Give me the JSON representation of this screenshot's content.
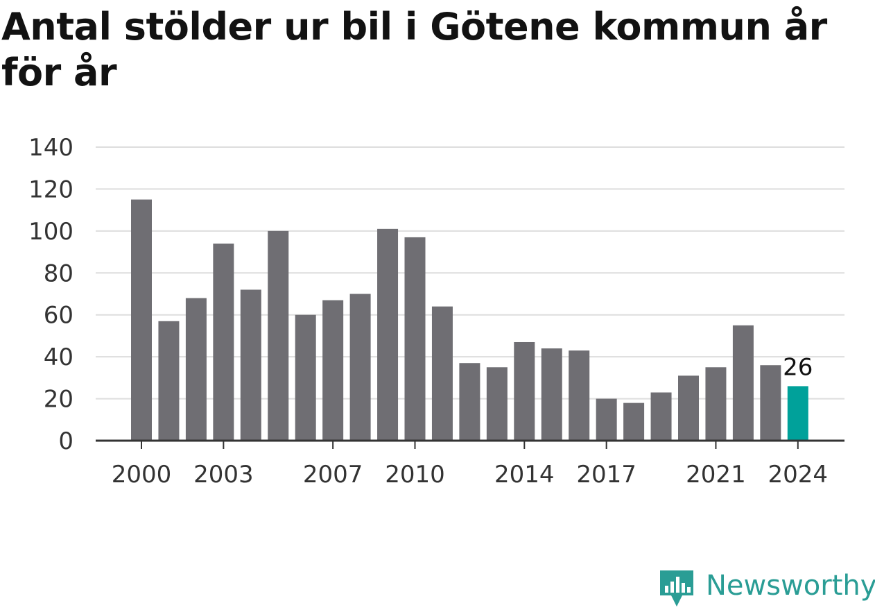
{
  "title": "Antal stölder ur bil i Götene kommun år för år",
  "brand": {
    "name": "Newsworthy",
    "color": "#2a9d95"
  },
  "colors": {
    "bar": "#6f6e73",
    "highlight": "#00a19a",
    "grid": "#dddddd",
    "axis": "#333333"
  },
  "chart_data": {
    "type": "bar",
    "title": "Antal stölder ur bil i Götene kommun år för år",
    "xlabel": "",
    "ylabel": "",
    "ylim": [
      0,
      140
    ],
    "yticks": [
      0,
      20,
      40,
      60,
      80,
      100,
      120,
      140
    ],
    "xtick_labels": [
      "2000",
      "2003",
      "2007",
      "2010",
      "2014",
      "2017",
      "2021",
      "2024"
    ],
    "categories": [
      "2000",
      "2001",
      "2002",
      "2003",
      "2004",
      "2005",
      "2006",
      "2007",
      "2008",
      "2009",
      "2010",
      "2011",
      "2012",
      "2013",
      "2014",
      "2015",
      "2016",
      "2017",
      "2018",
      "2019",
      "2020",
      "2021",
      "2022",
      "2023",
      "2024"
    ],
    "values": [
      115,
      57,
      68,
      94,
      72,
      100,
      60,
      67,
      70,
      101,
      97,
      64,
      37,
      35,
      47,
      44,
      43,
      20,
      18,
      23,
      31,
      35,
      55,
      36,
      26
    ],
    "highlight_category": "2024",
    "annotation": {
      "category": "2024",
      "label": "26"
    },
    "grid": true
  }
}
